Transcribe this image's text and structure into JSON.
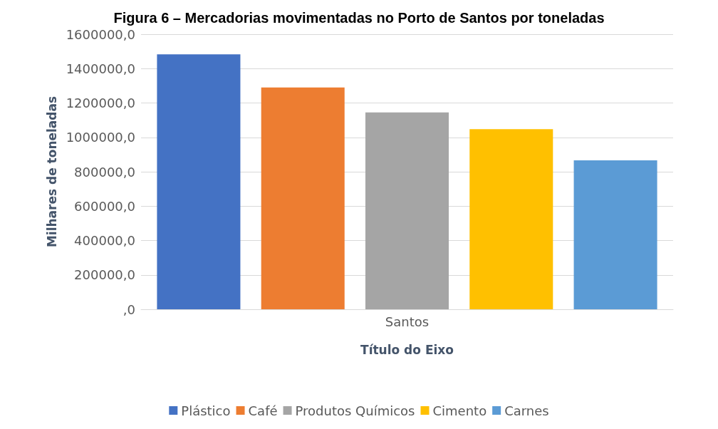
{
  "chart_data": {
    "type": "bar",
    "title": "Figura 6 – Mercadorias movimentadas no Porto de Santos por toneladas",
    "xlabel": "Título do Eixo",
    "ylabel": "Milhares de toneladas",
    "categories": [
      "Santos"
    ],
    "series": [
      {
        "name": "Plástico",
        "color": "#4472c4",
        "values": [
          1483000
        ]
      },
      {
        "name": "Café",
        "color": "#ed7d31",
        "values": [
          1290000
        ]
      },
      {
        "name": "Produtos Químicos",
        "color": "#a5a5a5",
        "values": [
          1145000
        ]
      },
      {
        "name": "Cimento",
        "color": "#ffc000",
        "values": [
          1048000
        ]
      },
      {
        "name": "Carnes",
        "color": "#5b9bd5",
        "values": [
          866000
        ]
      }
    ],
    "ylim": [
      0,
      1600000
    ],
    "yticks": [
      {
        "value": 0,
        "label": ",0"
      },
      {
        "value": 200000,
        "label": "200000,0"
      },
      {
        "value": 400000,
        "label": "400000,0"
      },
      {
        "value": 600000,
        "label": "600000,0"
      },
      {
        "value": 800000,
        "label": "800000,0"
      },
      {
        "value": 1000000,
        "label": "1000000,0"
      },
      {
        "value": 1200000,
        "label": "1200000,0"
      },
      {
        "value": 1400000,
        "label": "1400000,0"
      },
      {
        "value": 1600000,
        "label": "1600000,0"
      }
    ],
    "grid": "y",
    "legend": "bottom"
  }
}
